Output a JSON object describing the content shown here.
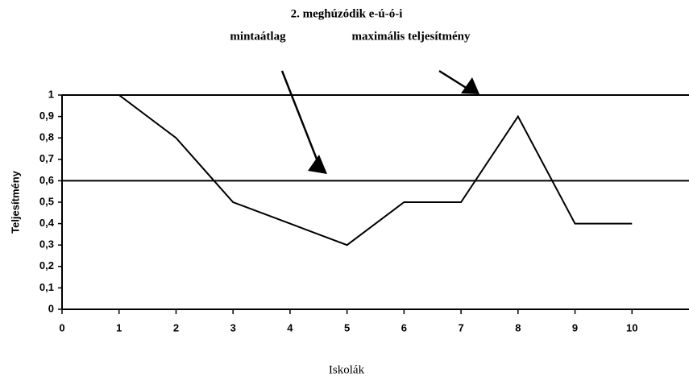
{
  "chart_data": {
    "type": "line",
    "title": "2. meghúzódik e-ú-ó-i",
    "annotations": [
      "mintaátlag",
      "maximális teljesítmény"
    ],
    "reference_lines": [
      1,
      0.6
    ],
    "x_label": "Iskolák",
    "y_label": "Teljesítmény",
    "x": [
      1,
      2,
      3,
      4,
      5,
      6,
      7,
      8,
      9,
      10
    ],
    "series": [
      {
        "color": "#000000",
        "values": [
          1,
          0.8,
          0.5,
          0.4,
          0.3,
          0.5,
          0.5,
          0.9,
          0.4,
          0.4
        ]
      }
    ],
    "xlim": [
      0,
      11
    ],
    "xticks": [
      0,
      1,
      2,
      3,
      4,
      5,
      6,
      7,
      8,
      9,
      10
    ],
    "ylim": [
      0,
      1
    ],
    "yticks": [
      0,
      {
        "value": 0.1,
        "label": "0,1"
      },
      {
        "value": 0.2,
        "label": "0,2"
      },
      {
        "value": 0.3,
        "label": "0,3"
      },
      {
        "value": 0.4,
        "label": "0,4"
      },
      {
        "value": 0.5,
        "label": "0,5"
      },
      {
        "value": 0.6,
        "label": "0,6"
      },
      {
        "value": 0.7,
        "label": "0,7"
      },
      {
        "value": 0.8,
        "label": "0,8"
      },
      {
        "value": 0.9,
        "label": "0,9"
      },
      1
    ],
    "grid": false
  }
}
